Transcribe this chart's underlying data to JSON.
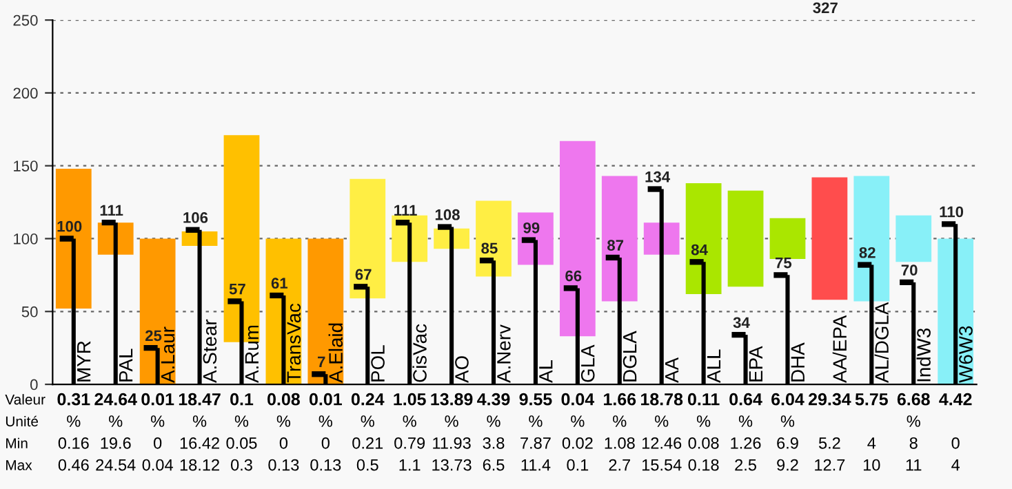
{
  "chart_data": {
    "type": "bar",
    "categories": [
      "MYR",
      "PAL",
      "A.Laur",
      "A.Stear",
      "A.Rum",
      "TransVac",
      "A.Elaid",
      "POL",
      "CisVac",
      "AO",
      "A.Nerv",
      "AL",
      "GLA",
      "DGLA",
      "AA",
      "ALL",
      "EPA",
      "DHA",
      "AA/EPA",
      "AL/DGLA",
      "IndW3",
      "W6W3"
    ],
    "series": [
      {
        "base": [
          52,
          89,
          0,
          95,
          29,
          0,
          0,
          59,
          84,
          93,
          74,
          82,
          33,
          57,
          89,
          62,
          67,
          86,
          58,
          57,
          84,
          0
        ],
        "values": [
          96,
          22,
          100,
          10,
          142,
          100,
          100,
          82,
          32,
          14,
          52,
          36,
          134,
          86,
          22,
          76,
          66,
          28,
          84,
          86,
          32,
          100
        ],
        "colors": [
          "#ff9900",
          "#ff9900",
          "#ff9900",
          "#ffc000",
          "#ffc000",
          "#ffc000",
          "#ff9900",
          "#ffee44",
          "#ffee44",
          "#ffee44",
          "#ffee44",
          "#ee77ee",
          "#ee77ee",
          "#ee77ee",
          "#ee77ee",
          "#aae600",
          "#aae600",
          "#aae600",
          "#ff4d4d",
          "#88f0f8",
          "#88f0f8",
          "#88f0f8"
        ]
      },
      {
        "color": "#000000",
        "values": [
          100,
          111,
          25,
          106,
          57,
          61,
          7,
          67,
          111,
          108,
          85,
          99,
          66,
          87,
          134,
          84,
          34,
          75,
          null,
          82,
          70,
          110
        ],
        "value_labels": [
          "100",
          "111",
          "25",
          "106",
          "57",
          "61",
          "7",
          "67",
          "111",
          "108",
          "85",
          "99",
          "66",
          "87",
          "134",
          "84",
          "34",
          "75",
          "327",
          "82",
          "70",
          "110"
        ]
      }
    ],
    "ylim": [
      0,
      250
    ],
    "yticks": [
      0,
      50,
      100,
      150,
      200,
      250
    ],
    "grid": "y",
    "annotations": [
      "Valeur",
      "0.31",
      "24.64",
      "0.01",
      "18.47",
      "0.1",
      "0.08",
      "0.01",
      "0.24",
      "1.05",
      "13.89",
      "4.39",
      "9.55",
      "0.04",
      "1.66",
      "18.78",
      "0.11",
      "0.64",
      "6.04",
      "29.34",
      "5.75",
      "6.68",
      "4.42",
      "Unité",
      "%",
      "%",
      "%",
      "%",
      "%",
      "%",
      "%",
      "%",
      "%",
      "%",
      "%",
      "%",
      "%",
      "%",
      "%",
      "%",
      "%",
      "%",
      null,
      null,
      "%",
      null,
      "Min",
      "0.16",
      "19.6",
      "0",
      "16.42",
      "0.05",
      "0",
      "0",
      "0.21",
      "0.79",
      "11.93",
      "3.8",
      "7.87",
      "0.02",
      "1.08",
      "12.46",
      "0.08",
      "1.26",
      "6.9",
      "5.2",
      "4",
      "8",
      "0",
      "Max",
      "0.46",
      "24.54",
      "0.04",
      "18.12",
      "0.3",
      "0.13",
      "0.13",
      "0.5",
      "1.1",
      "13.73",
      "6.5",
      "11.4",
      "0.1",
      "2.7",
      "15.54",
      "0.18",
      "2.5",
      "9.2",
      "12.7",
      "10",
      "11",
      "4"
    ]
  }
}
